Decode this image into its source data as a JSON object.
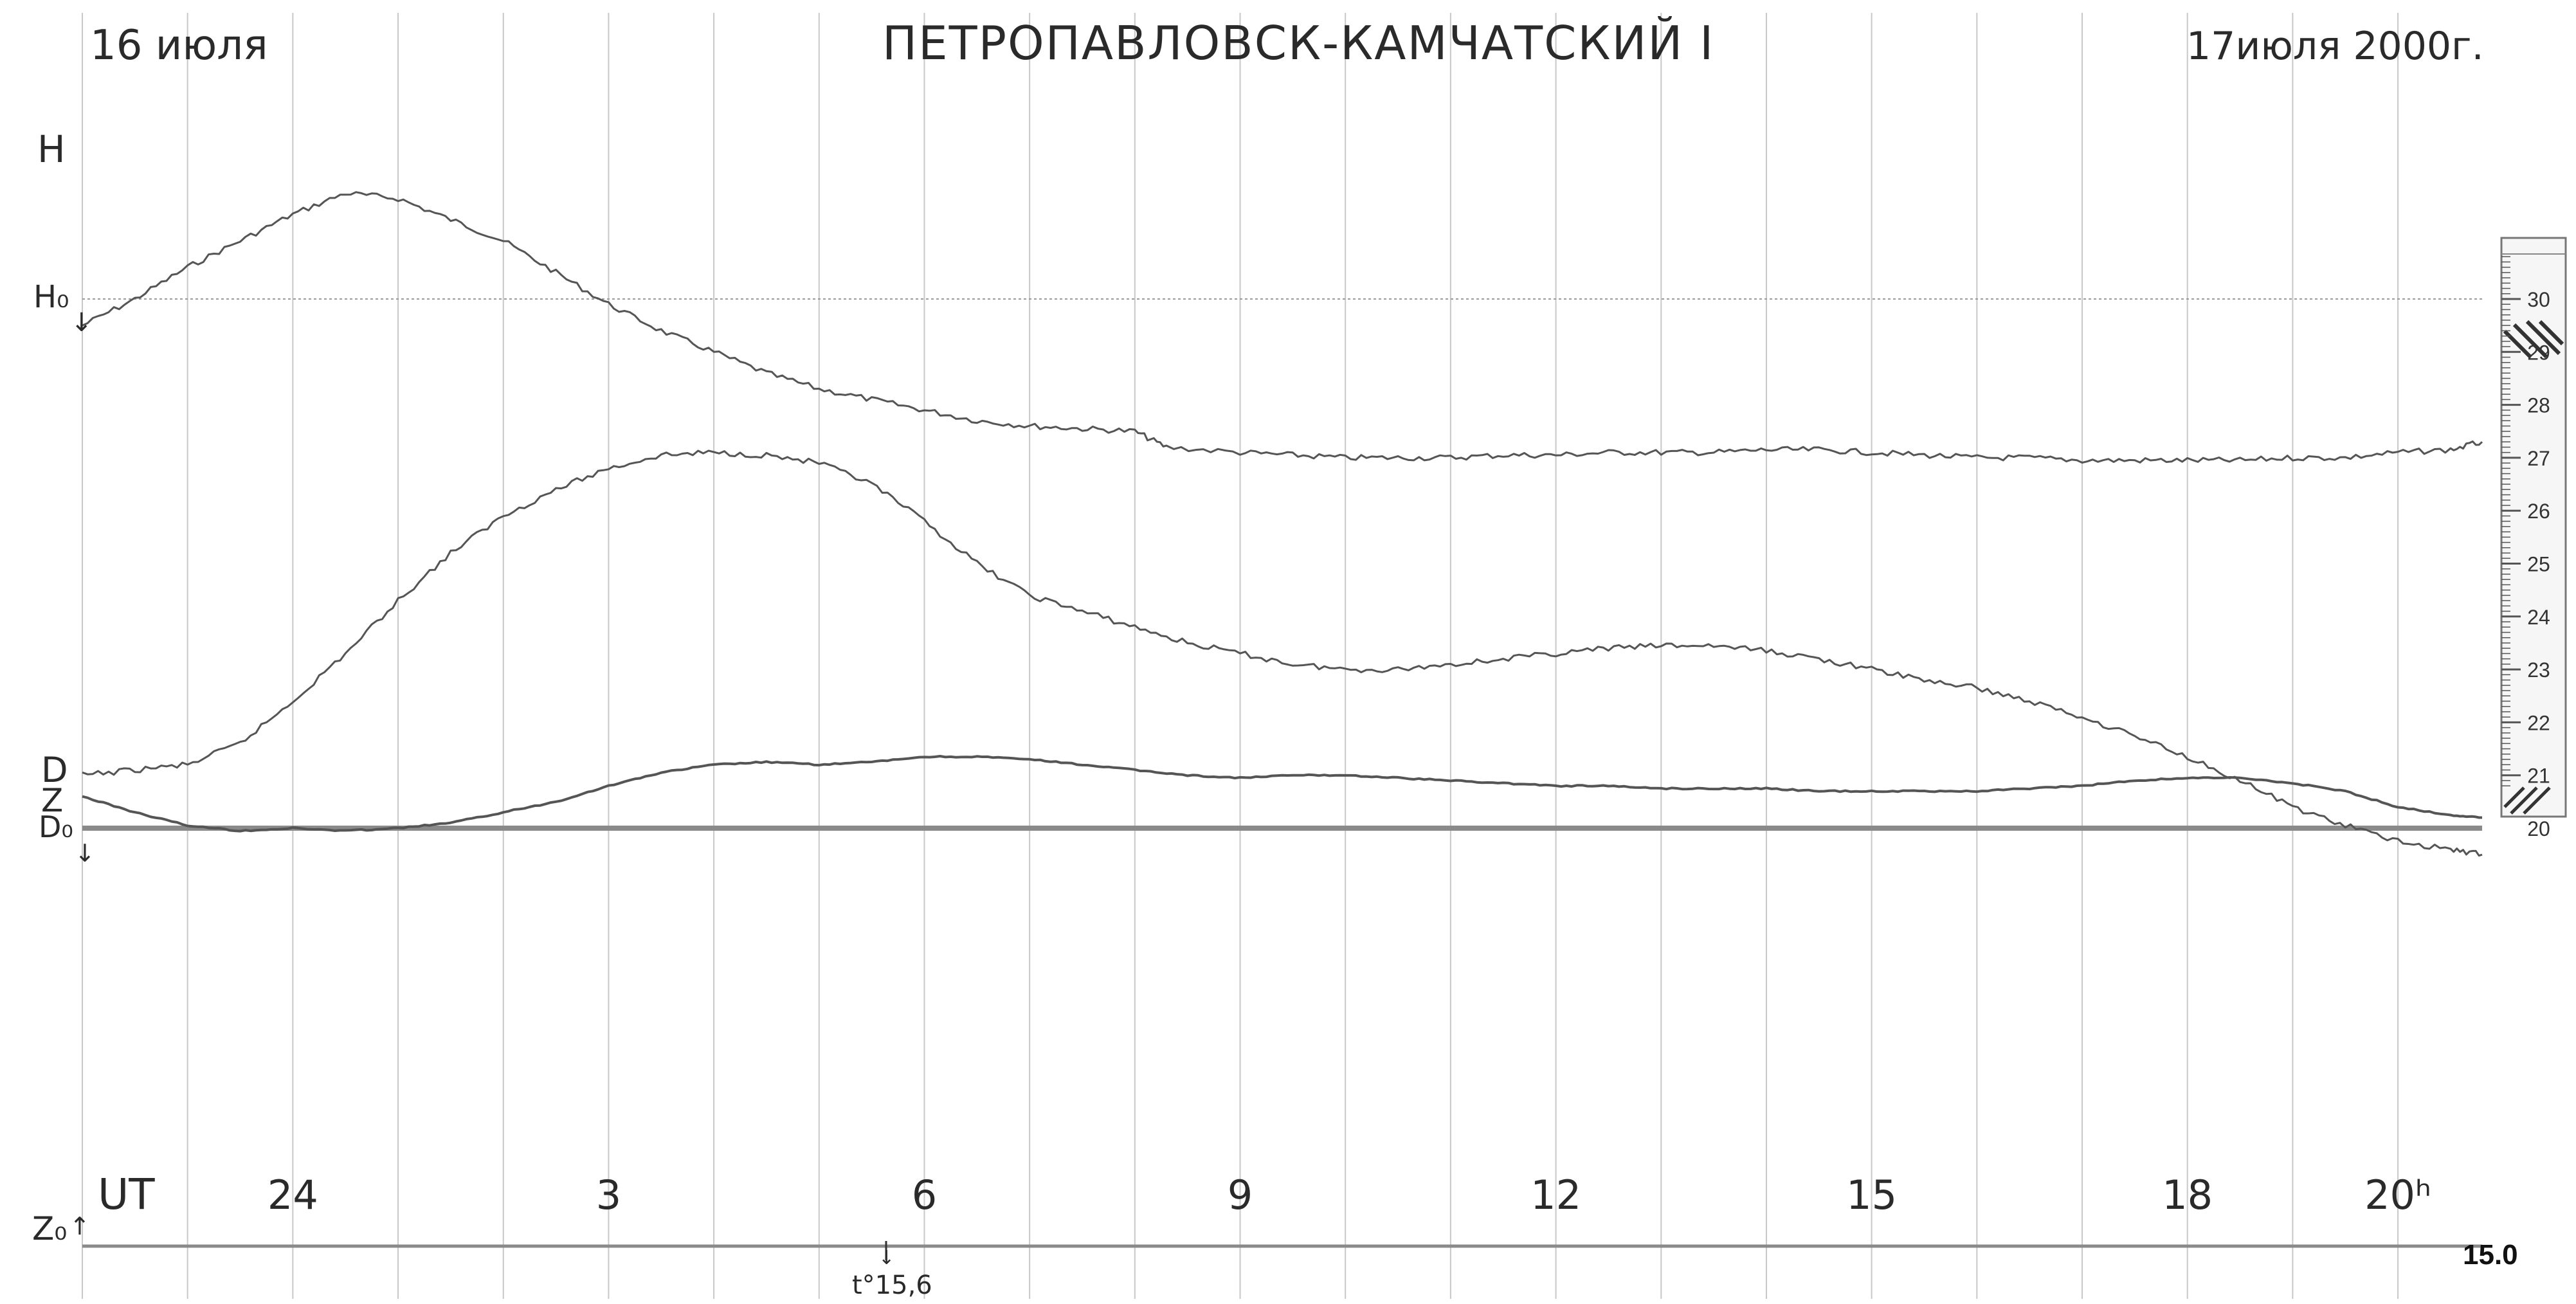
{
  "header": {
    "left_date": "16 июля",
    "title": "ПЕТРОПАВЛОВСК-КАМЧАТСКИЙ I",
    "right_date": "17июля 2000г."
  },
  "trace_labels": {
    "H": "H",
    "H0": "H₀",
    "D": "D",
    "Z": "Z",
    "D0": "D₀",
    "Z0": "Z₀"
  },
  "time_axis": {
    "unit_label": "UT",
    "ticks": [
      "24",
      "3",
      "6",
      "9",
      "12",
      "15",
      "18",
      "20ʰ"
    ]
  },
  "annotations": {
    "temperature": "t°15,6",
    "corner_value": "15.0"
  },
  "scale_bar": {
    "labels": [
      "30",
      "29",
      "28",
      "27",
      "26",
      "25",
      "24",
      "23",
      "22",
      "21",
      "20"
    ]
  },
  "colors": {
    "paper": "#ffffff",
    "trace": "#555555",
    "grid": "#c8c8c8",
    "baseline": "#8a8a8a",
    "ink": "#2a2a2a"
  },
  "chart_data": {
    "type": "line",
    "title": "ПЕТРОПАВЛОВСК-КАМЧАТСКИЙ I",
    "xlabel": "UT",
    "ylabel": "",
    "x_unit": "hours UT (continuous from 16 July 22h; 24 = 00h 17 July)",
    "xlim": [
      22.0,
      44.8
    ],
    "grid": true,
    "series": [
      {
        "name": "H",
        "x": [
          22.0,
          22.5,
          23.0,
          23.5,
          24.0,
          24.5,
          25.0,
          25.5,
          26.0,
          26.5,
          27.0,
          27.5,
          28.0,
          28.5,
          29.0,
          29.5,
          30.0,
          30.5,
          31.0,
          31.5,
          32.0,
          32.3,
          33.0,
          33.5,
          34.0,
          34.5,
          35.0,
          35.5,
          36.0,
          36.5,
          37.0,
          37.5,
          38.0,
          38.5,
          39.0,
          39.5,
          40.0,
          40.5,
          41.0,
          41.5,
          42.0,
          42.5,
          43.0,
          43.5,
          44.0,
          44.5,
          44.8
        ],
        "y": [
          29.5,
          30.0,
          30.6,
          31.1,
          31.6,
          32.0,
          31.9,
          31.5,
          31.1,
          30.5,
          29.9,
          29.4,
          29.0,
          28.6,
          28.3,
          28.1,
          27.9,
          27.7,
          27.6,
          27.55,
          27.5,
          27.2,
          27.1,
          27.05,
          27.0,
          27.0,
          27.0,
          27.05,
          27.05,
          27.1,
          27.1,
          27.1,
          27.15,
          27.15,
          27.1,
          27.05,
          27.0,
          27.0,
          26.95,
          26.95,
          26.95,
          26.95,
          27.0,
          27.0,
          27.1,
          27.15,
          27.3
        ],
        "sampled": true
      },
      {
        "name": "D",
        "x": [
          22.0,
          22.5,
          23.0,
          23.5,
          24.0,
          24.5,
          25.0,
          25.5,
          26.0,
          26.5,
          27.0,
          27.5,
          28.0,
          28.5,
          29.0,
          29.5,
          30.0,
          30.5,
          31.0,
          31.5,
          32.0,
          32.5,
          33.0,
          33.5,
          34.0,
          34.5,
          35.0,
          35.5,
          36.0,
          36.5,
          37.0,
          37.5,
          38.0,
          38.5,
          39.0,
          39.5,
          40.0,
          40.5,
          41.0,
          41.5,
          42.0,
          42.5,
          43.0,
          43.5,
          44.0,
          44.5,
          44.8
        ],
        "y": [
          21.0,
          21.1,
          21.2,
          21.6,
          22.4,
          23.3,
          24.3,
          25.2,
          25.9,
          26.4,
          26.8,
          27.05,
          27.1,
          27.05,
          26.9,
          26.5,
          25.8,
          25.0,
          24.4,
          24.1,
          23.8,
          23.5,
          23.3,
          23.1,
          23.0,
          23.0,
          23.1,
          23.2,
          23.3,
          23.4,
          23.45,
          23.45,
          23.35,
          23.2,
          23.0,
          22.8,
          22.65,
          22.4,
          22.1,
          21.75,
          21.35,
          20.9,
          20.4,
          20.05,
          19.75,
          19.6,
          19.5
        ],
        "sampled": true
      },
      {
        "name": "Z",
        "x": [
          22.0,
          22.5,
          23.0,
          23.5,
          24.0,
          24.5,
          25.0,
          25.5,
          26.0,
          26.5,
          27.0,
          27.5,
          28.0,
          28.5,
          29.0,
          29.5,
          30.0,
          30.5,
          31.0,
          31.5,
          32.0,
          32.5,
          33.0,
          33.5,
          34.0,
          34.5,
          35.0,
          35.5,
          36.0,
          36.5,
          37.0,
          37.5,
          38.0,
          38.5,
          39.0,
          39.5,
          40.0,
          40.5,
          41.0,
          41.5,
          42.0,
          42.5,
          43.0,
          43.5,
          44.0,
          44.5,
          44.8
        ],
        "y": [
          20.6,
          20.3,
          20.05,
          19.95,
          20.0,
          19.95,
          20.0,
          20.1,
          20.3,
          20.5,
          20.8,
          21.05,
          21.2,
          21.25,
          21.2,
          21.25,
          21.35,
          21.35,
          21.3,
          21.2,
          21.1,
          21.0,
          20.95,
          21.0,
          21.0,
          20.95,
          20.9,
          20.85,
          20.8,
          20.8,
          20.75,
          20.75,
          20.75,
          20.7,
          20.7,
          20.7,
          20.7,
          20.75,
          20.8,
          20.9,
          20.95,
          20.95,
          20.85,
          20.7,
          20.4,
          20.25,
          20.2
        ],
        "sampled": true
      }
    ]
  }
}
